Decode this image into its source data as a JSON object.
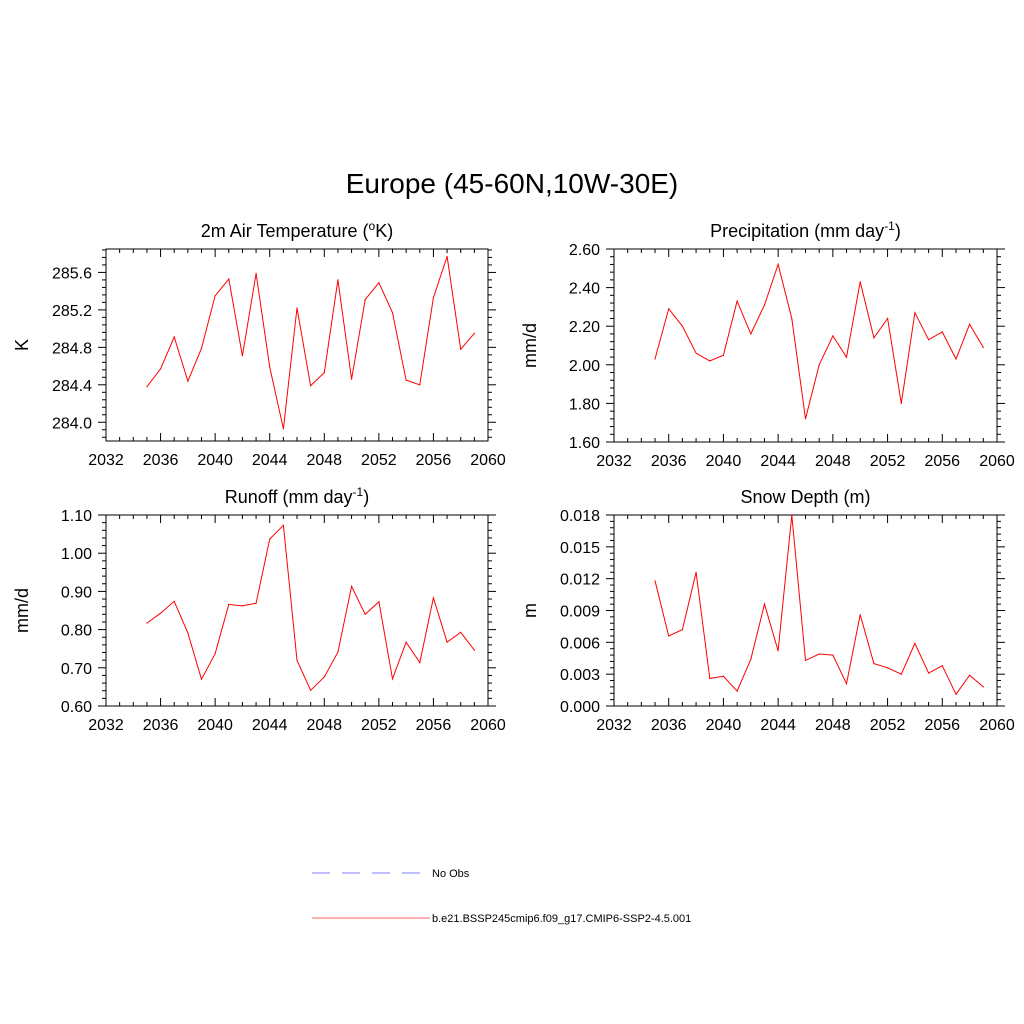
{
  "title": "Europe (45-60N,10W-30E)",
  "colors": {
    "model": "#ff0000",
    "obs": "#9a9aff",
    "legend_model": "#ff8080"
  },
  "legend": {
    "items": [
      {
        "label": "No Obs",
        "style": "dashed",
        "color": "#9a9aff"
      },
      {
        "label": "b.e21.BSSP245cmip6.f09_g17.CMIP6-SSP2-4.5.001",
        "style": "solid",
        "color": "#ff8080"
      }
    ]
  },
  "chart_data": [
    {
      "type": "line",
      "title_main": "2m Air Temperature (",
      "title_sup": "o",
      "title_after": "K)",
      "ylabel": "K",
      "xlim": [
        2032,
        2060
      ],
      "xticks": [
        "2032",
        "2036",
        "2040",
        "2044",
        "2048",
        "2052",
        "2056",
        "2060"
      ],
      "ylim": [
        283.8,
        285.85
      ],
      "yticks": [
        "284.0",
        "284.4",
        "284.8",
        "285.2",
        "285.6"
      ],
      "series": [
        {
          "x": [
            2035,
            2036,
            2037,
            2038,
            2039,
            2040,
            2041,
            2042,
            2043,
            2044,
            2045,
            2046,
            2047,
            2048,
            2049,
            2050,
            2051,
            2052,
            2053,
            2054,
            2055,
            2056,
            2057,
            2058,
            2059
          ],
          "y": [
            284.38,
            284.57,
            284.91,
            284.44,
            284.79,
            285.35,
            285.53,
            284.71,
            285.59,
            284.59,
            283.93,
            285.22,
            284.39,
            284.53,
            285.52,
            284.46,
            285.31,
            285.49,
            285.17,
            284.45,
            284.4,
            285.33,
            285.77,
            284.78,
            284.95
          ]
        }
      ]
    },
    {
      "type": "line",
      "title_main": "Precipitation (mm day",
      "title_sup": "-1",
      "title_after": ")",
      "ylabel": "mm/d",
      "xlim": [
        2032,
        2060
      ],
      "xticks": [
        "2032",
        "2036",
        "2040",
        "2044",
        "2048",
        "2052",
        "2056",
        "2060"
      ],
      "ylim": [
        1.6,
        2.6
      ],
      "yticks": [
        "1.60",
        "1.80",
        "2.00",
        "2.20",
        "2.40",
        "2.60"
      ],
      "series": [
        {
          "x": [
            2035,
            2036,
            2037,
            2038,
            2039,
            2040,
            2041,
            2042,
            2043,
            2044,
            2045,
            2046,
            2047,
            2048,
            2049,
            2050,
            2051,
            2052,
            2053,
            2054,
            2055,
            2056,
            2057,
            2058,
            2059
          ],
          "y": [
            2.03,
            2.29,
            2.2,
            2.06,
            2.02,
            2.05,
            2.33,
            2.16,
            2.31,
            2.52,
            2.24,
            1.72,
            2.0,
            2.15,
            2.04,
            2.43,
            2.14,
            2.24,
            1.8,
            2.27,
            2.13,
            2.17,
            2.03,
            2.21,
            2.09
          ]
        }
      ]
    },
    {
      "type": "line",
      "title_main": "Runoff (mm day",
      "title_sup": "-1",
      "title_after": ")",
      "ylabel": "mm/d",
      "xlim": [
        2032,
        2060
      ],
      "xticks": [
        "2032",
        "2036",
        "2040",
        "2044",
        "2048",
        "2052",
        "2056",
        "2060"
      ],
      "ylim": [
        0.6,
        1.1
      ],
      "yticks": [
        "0.60",
        "0.70",
        "0.80",
        "0.90",
        "1.00",
        "1.10"
      ],
      "series": [
        {
          "x": [
            2035,
            2036,
            2037,
            2038,
            2039,
            2040,
            2041,
            2042,
            2043,
            2044,
            2045,
            2046,
            2047,
            2048,
            2049,
            2050,
            2051,
            2052,
            2053,
            2054,
            2055,
            2056,
            2057,
            2058,
            2059
          ],
          "y": [
            0.817,
            0.843,
            0.874,
            0.791,
            0.67,
            0.737,
            0.866,
            0.862,
            0.869,
            1.037,
            1.073,
            0.72,
            0.641,
            0.676,
            0.741,
            0.913,
            0.84,
            0.873,
            0.671,
            0.767,
            0.714,
            0.883,
            0.767,
            0.793,
            0.746
          ]
        }
      ]
    },
    {
      "type": "line",
      "title_main": "Snow Depth (m)",
      "title_sup": "",
      "title_after": "",
      "ylabel": "m",
      "xlim": [
        2032,
        2060
      ],
      "xticks": [
        "2032",
        "2036",
        "2040",
        "2044",
        "2048",
        "2052",
        "2056",
        "2060"
      ],
      "ylim": [
        0.0,
        0.018
      ],
      "yticks": [
        "0.000",
        "0.003",
        "0.006",
        "0.009",
        "0.012",
        "0.015",
        "0.018"
      ],
      "series": [
        {
          "x": [
            2035,
            2036,
            2037,
            2038,
            2039,
            2040,
            2041,
            2042,
            2043,
            2044,
            2045,
            2046,
            2047,
            2048,
            2049,
            2050,
            2051,
            2052,
            2053,
            2054,
            2055,
            2056,
            2057,
            2058,
            2059
          ],
          "y": [
            0.0118,
            0.0066,
            0.0072,
            0.0126,
            0.0026,
            0.0028,
            0.0014,
            0.0044,
            0.0096,
            0.0052,
            0.018,
            0.0043,
            0.0049,
            0.0048,
            0.0021,
            0.0086,
            0.004,
            0.0036,
            0.003,
            0.0059,
            0.0031,
            0.0038,
            0.0011,
            0.0029,
            0.0018
          ]
        }
      ]
    }
  ]
}
